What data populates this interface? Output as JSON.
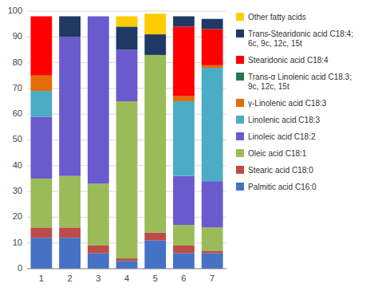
{
  "chart_data": {
    "type": "bar",
    "stacked": true,
    "categories": [
      "1",
      "2",
      "3",
      "4",
      "5",
      "6",
      "7"
    ],
    "series": [
      {
        "name": "Palmitic acid C16:0",
        "color": "#4472C4",
        "values": [
          12,
          12,
          6,
          3,
          11,
          6,
          6
        ]
      },
      {
        "name": "Stearic acid C18:0",
        "color": "#BE4B48",
        "values": [
          4,
          4,
          3,
          1,
          3,
          3,
          1
        ]
      },
      {
        "name": "Oleic acid C18:1",
        "color": "#9BBB59",
        "values": [
          19,
          20,
          24,
          61,
          69,
          8,
          9
        ]
      },
      {
        "name": "Linoleic acid C18:2",
        "color": "#6A5ACD",
        "values": [
          24,
          54,
          65,
          20,
          0,
          19,
          18
        ]
      },
      {
        "name": "Linolenic acid C18:3",
        "color": "#4BACC6",
        "values": [
          10,
          0,
          0,
          0,
          0,
          29,
          44
        ]
      },
      {
        "name": "γ-Linolenic acid C18:3",
        "color": "#E36C09",
        "values": [
          6,
          0,
          0,
          0,
          0,
          2,
          1
        ]
      },
      {
        "name": "Trans-α Linolenic acid C18.3;\n9c, 12c, 15t",
        "color": "#1F7B4D",
        "values": [
          0,
          0,
          0,
          0,
          0,
          0,
          0
        ]
      },
      {
        "name": "Stearidonic acid C18:4",
        "color": "#FF0000",
        "values": [
          23,
          0,
          0,
          0,
          0,
          27,
          14
        ]
      },
      {
        "name": "Trans-Stearidonic acid C18:4;\n6c, 9c, 12c, 15t",
        "color": "#1F3864",
        "values": [
          0,
          8,
          0,
          9,
          8,
          4,
          4
        ]
      },
      {
        "name": "Other fatty acids",
        "color": "#FFCC00",
        "values": [
          0,
          0,
          0,
          4,
          8,
          0,
          0
        ]
      }
    ],
    "ylim": [
      0,
      100
    ],
    "yticks": [
      0,
      10,
      20,
      30,
      40,
      50,
      60,
      70,
      80,
      90,
      100
    ],
    "grid": true,
    "legend": "right"
  }
}
